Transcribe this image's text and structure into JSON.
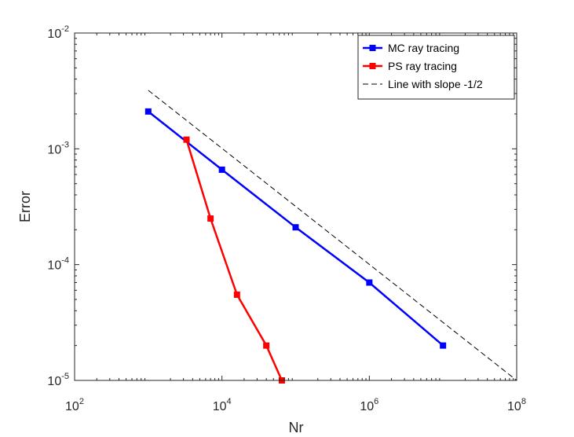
{
  "chart_data": {
    "type": "line",
    "xlabel": "Nr",
    "ylabel": "Error",
    "xscale": "log",
    "yscale": "log",
    "xlim": [
      100,
      100000000
    ],
    "ylim": [
      1e-05,
      0.01
    ],
    "x_ticks": [
      {
        "value": 100,
        "base": "10",
        "exp": "2"
      },
      {
        "value": 10000,
        "base": "10",
        "exp": "4"
      },
      {
        "value": 1000000,
        "base": "10",
        "exp": "6"
      },
      {
        "value": 100000000,
        "base": "10",
        "exp": "8"
      }
    ],
    "y_ticks": [
      {
        "value": 1e-05,
        "base": "10",
        "exp": "-5"
      },
      {
        "value": 0.0001,
        "base": "10",
        "exp": "-4"
      },
      {
        "value": 0.001,
        "base": "10",
        "exp": "-3"
      },
      {
        "value": 0.01,
        "base": "10",
        "exp": "-2"
      }
    ],
    "legend_position": "top-right",
    "grid": false,
    "series": [
      {
        "name": "MC ray tracing",
        "color": "#0000ff",
        "style": "solid-marker",
        "x": [
          1000,
          10000,
          100000,
          1000000,
          10000000
        ],
        "y": [
          0.0021,
          0.00066,
          0.00021,
          7e-05,
          2e-05
        ]
      },
      {
        "name": "PS ray tracing",
        "color": "#ff0000",
        "style": "solid-marker",
        "x": [
          3300,
          7000,
          16000,
          40000,
          65000
        ],
        "y": [
          0.0012,
          0.00025,
          5.5e-05,
          2e-05,
          1e-05
        ]
      },
      {
        "name": "Line with slope -1/2",
        "color": "#000000",
        "style": "dashed",
        "x": [
          1000,
          100000000
        ],
        "y": [
          0.0032,
          1e-05
        ]
      },
      {
        "name": "",
        "color": "#000000",
        "style": "dashdot",
        "x": [
          100,
          100000000
        ],
        "y": [
          1e-05,
          1e-05
        ]
      }
    ]
  }
}
